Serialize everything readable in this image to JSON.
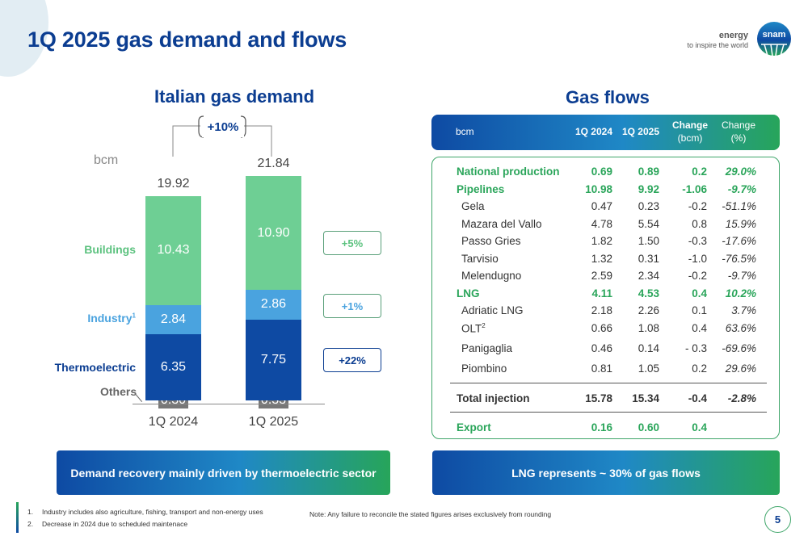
{
  "page": {
    "title": "1Q 2025 gas demand and flows",
    "number": "5"
  },
  "brand": {
    "word": "energy",
    "tagline": "to inspire the world",
    "logo_text": "snam",
    "accent_blue": "#0b3d91",
    "accent_green": "#27a55a"
  },
  "demand": {
    "title": "Italian gas demand",
    "unit": "bcm",
    "growth_total": "+10%",
    "categories": {
      "buildings": "Buildings",
      "industry": "Industry",
      "industry_sup": "1",
      "thermoelectric": "Thermoelectric",
      "others": "Others"
    },
    "growth": {
      "buildings": "+5%",
      "industry": "+1%",
      "thermoelectric": "+22%"
    }
  },
  "chart_data": {
    "type": "bar",
    "stacked": true,
    "categories": [
      "1Q 2024",
      "1Q 2025"
    ],
    "series": [
      {
        "name": "Others",
        "values": [
          0.3,
          0.33
        ],
        "labels": [
          "0.30",
          "0.33"
        ],
        "color": "#777777"
      },
      {
        "name": "Thermoelectric",
        "values": [
          6.35,
          7.75
        ],
        "labels": [
          "6.35",
          "7.75"
        ],
        "color": "#0e4aa3"
      },
      {
        "name": "Industry",
        "values": [
          2.84,
          2.86
        ],
        "labels": [
          "2.84",
          "2.86"
        ],
        "color": "#4aa3df"
      },
      {
        "name": "Buildings",
        "values": [
          10.43,
          10.9
        ],
        "labels": [
          "10.43",
          "10.90"
        ],
        "color": "#6ecf94"
      }
    ],
    "totals": [
      "19.92",
      "21.84"
    ],
    "ylabel": "bcm",
    "ylim": [
      0,
      23
    ]
  },
  "flows": {
    "title": "Gas flows",
    "headers": {
      "unit": "bcm",
      "col1": "1Q 2024",
      "col2": "1Q 2025",
      "col3_l1": "Change",
      "col3_l2": "(bcm)",
      "col4_l1": "Change",
      "col4_l2": "(%)"
    },
    "rows": [
      {
        "name": "National production",
        "a": "0.69",
        "b": "0.89",
        "c": "0.2",
        "d": "29.0%"
      },
      {
        "name": "Pipelines",
        "a": "10.98",
        "b": "9.92",
        "c": "-1.06",
        "d": "-9.7%"
      },
      {
        "name": "Gela",
        "a": "0.47",
        "b": "0.23",
        "c": "-0.2",
        "d": "-51.1%"
      },
      {
        "name": "Mazara del Vallo",
        "a": "4.78",
        "b": "5.54",
        "c": "0.8",
        "d": "15.9%"
      },
      {
        "name": "Passo Gries",
        "a": "1.82",
        "b": "1.50",
        "c": "-0.3",
        "d": "-17.6%"
      },
      {
        "name": "Tarvisio",
        "a": "1.32",
        "b": "0.31",
        "c": "-1.0",
        "d": "-76.5%"
      },
      {
        "name": "Melendugno",
        "a": "2.59",
        "b": "2.34",
        "c": "-0.2",
        "d": "-9.7%"
      },
      {
        "name": "LNG",
        "a": "4.11",
        "b": "4.53",
        "c": "0.4",
        "d": "10.2%"
      },
      {
        "name": "Adriatic LNG",
        "a": "2.18",
        "b": "2.26",
        "c": "0.1",
        "d": "3.7%"
      },
      {
        "name": "OLT",
        "sup": "2",
        "a": "0.66",
        "b": "1.08",
        "c": "0.4",
        "d": "63.6%"
      },
      {
        "name": "Panigaglia",
        "a": "0.46",
        "b": "0.14",
        "c": "- 0.3",
        "d": "-69.6%"
      },
      {
        "name": "Piombino",
        "a": "0.81",
        "b": "1.05",
        "c": "0.2",
        "d": "29.6%"
      },
      {
        "name": "Total injection",
        "a": "15.78",
        "b": "15.34",
        "c": "-0.4",
        "d": "-2.8%"
      },
      {
        "name": "Export",
        "a": "0.16",
        "b": "0.60",
        "c": "0.4",
        "d": ""
      }
    ]
  },
  "banners": {
    "left": "Demand recovery mainly driven by thermoelectric sector",
    "right": "LNG represents ~ 30% of gas flows"
  },
  "footnotes": {
    "n1_num": "1.",
    "n1": "Industry includes also agriculture, fishing, transport and non-energy uses",
    "n2_num": "2.",
    "n2": "Decrease in 2024 due to scheduled maintenace",
    "note": "Note:   Any failure to reconcile the stated figures arises exclusively from rounding"
  }
}
